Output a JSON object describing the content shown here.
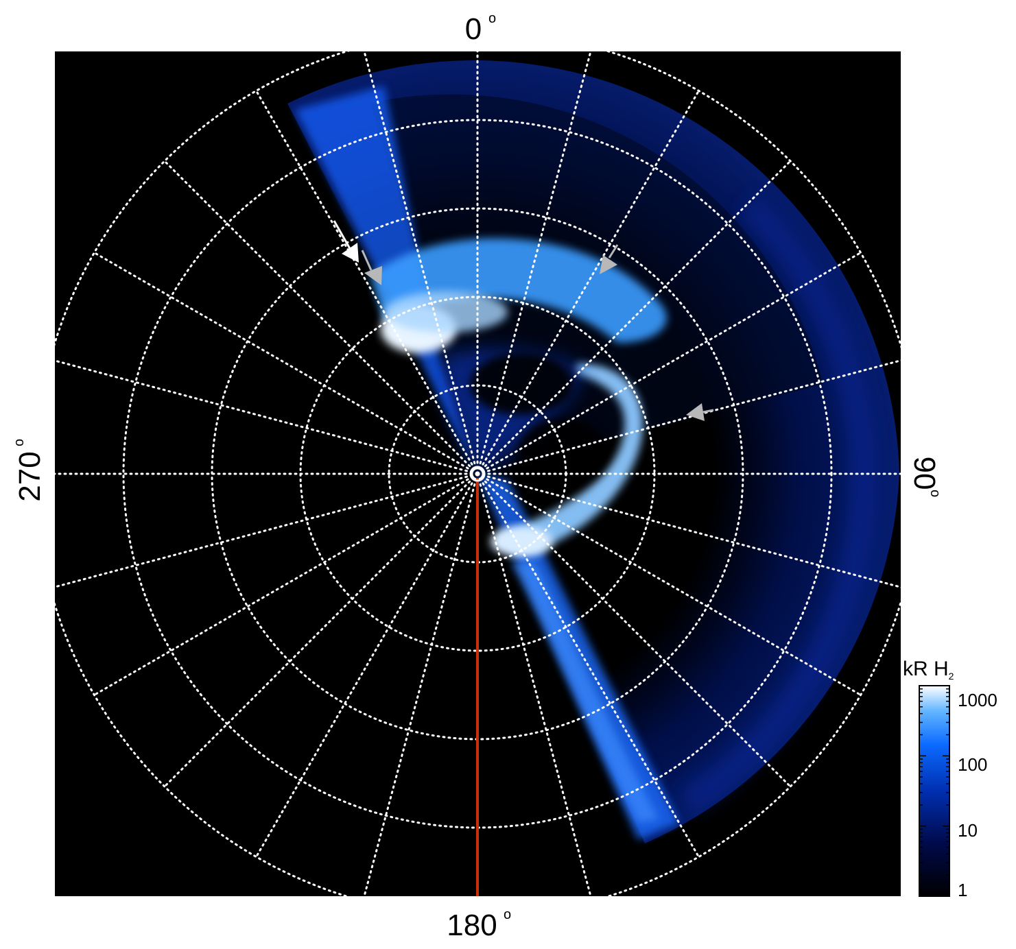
{
  "angle_labels": {
    "top": "0",
    "right": "90",
    "bottom": "180",
    "left": "270",
    "degree_symbol": "o"
  },
  "colorbar": {
    "title_main": "kR H",
    "title_sub": "2",
    "tick_labels": [
      "1000",
      "100",
      "10",
      "1"
    ],
    "scale": "log",
    "range": [
      1,
      1000
    ],
    "colors": [
      "#000000",
      "#000a4a",
      "#002fb0",
      "#0b6bff",
      "#63b6ff",
      "#ffffff"
    ]
  },
  "plot": {
    "background": "#000000",
    "grid_color": "#ffffff",
    "meridian_color": "#c8300a",
    "emission_color": "#1e82ff",
    "arrow_white": "#ffffff",
    "arrow_gray": "#b8b8b8"
  }
}
